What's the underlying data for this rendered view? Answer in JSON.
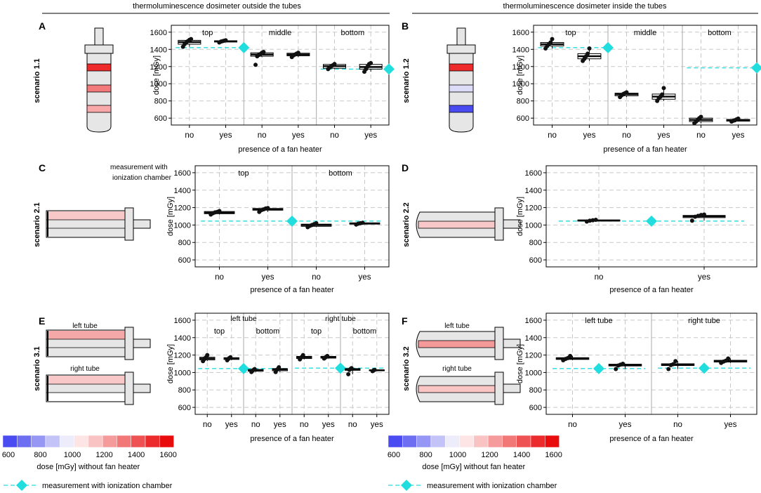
{
  "header": {
    "left": "thermoluminescence dosimeter outside the tubes",
    "right": "thermoluminescence dosimeter inside the tubes"
  },
  "annotation_C": "measurement with\nionization chamber",
  "colorbar": {
    "title": "dose [mGy] without fan heater",
    "ticks": [
      "600",
      "800",
      "1000",
      "1200",
      "1400",
      "1600"
    ],
    "colors": [
      "#4b4bf2",
      "#6e6ef3",
      "#9696f5",
      "#c3c3f8",
      "#ececfb",
      "#fde5e5",
      "#fac3c3",
      "#f69b9b",
      "#f27777",
      "#ef5252",
      "#ec2c2c",
      "#e90c0c"
    ]
  },
  "legend": {
    "label": "measurement with ionization chamber",
    "color": "#22dddd"
  },
  "colors": {
    "dashed": "#22dddd",
    "diamond": "#22dddd",
    "grid": "#c8c8c8"
  },
  "chart_data": [
    {
      "id": "A",
      "type": "boxplot",
      "scenario": "scenario 1.1",
      "ylabel": "dose [mGy]",
      "xlabel": "presence of a fan heater",
      "ylim": [
        520,
        1680
      ],
      "yticks": [
        600,
        800,
        1000,
        1200,
        1400,
        1600
      ],
      "categories": [
        "no",
        "yes",
        "no",
        "yes",
        "no",
        "yes"
      ],
      "groups": [
        {
          "label": "top",
          "span": [
            0,
            1
          ]
        },
        {
          "label": "middle",
          "span": [
            2,
            3
          ]
        },
        {
          "label": "bottom",
          "span": [
            4,
            5
          ]
        }
      ],
      "subgroups": [],
      "boxes": [
        {
          "q1": 1460,
          "med": 1485,
          "q3": 1505,
          "wlo": 1430,
          "whi": 1520,
          "pts": [
            1430,
            1460,
            1480,
            1495,
            1510,
            1520
          ]
        },
        {
          "q1": 1485,
          "med": 1495,
          "q3": 1500,
          "wlo": 1480,
          "whi": 1505,
          "pts": [
            1480,
            1490,
            1495,
            1500,
            1505
          ]
        },
        {
          "q1": 1320,
          "med": 1340,
          "q3": 1360,
          "wlo": 1310,
          "whi": 1370,
          "pts": [
            1220,
            1320,
            1335,
            1345,
            1360,
            1370
          ]
        },
        {
          "q1": 1325,
          "med": 1340,
          "q3": 1355,
          "wlo": 1310,
          "whi": 1365,
          "pts": [
            1310,
            1330,
            1340,
            1350,
            1360
          ]
        },
        {
          "q1": 1180,
          "med": 1205,
          "q3": 1225,
          "wlo": 1170,
          "whi": 1235,
          "pts": [
            1170,
            1190,
            1205,
            1215,
            1230
          ]
        },
        {
          "q1": 1170,
          "med": 1195,
          "q3": 1225,
          "wlo": 1140,
          "whi": 1240,
          "pts": [
            1140,
            1170,
            1200,
            1230,
            1240
          ]
        }
      ],
      "chamber": [
        {
          "x": 2,
          "y": 1420,
          "span": [
            0,
            1
          ]
        },
        {
          "x": 6,
          "y": 1170,
          "span": [
            4,
            5
          ]
        }
      ]
    },
    {
      "id": "B",
      "type": "boxplot",
      "scenario": "scenario 1.2",
      "ylabel": "dose [mGy]",
      "xlabel": "presence of a fan heater",
      "ylim": [
        520,
        1680
      ],
      "yticks": [
        600,
        800,
        1000,
        1200,
        1400,
        1600
      ],
      "categories": [
        "no",
        "yes",
        "no",
        "yes",
        "no",
        "yes"
      ],
      "groups": [
        {
          "label": "top",
          "span": [
            0,
            1
          ]
        },
        {
          "label": "middle",
          "span": [
            2,
            3
          ]
        },
        {
          "label": "bottom",
          "span": [
            4,
            5
          ]
        }
      ],
      "subgroups": [],
      "boxes": [
        {
          "q1": 1440,
          "med": 1460,
          "q3": 1480,
          "wlo": 1410,
          "whi": 1520,
          "pts": [
            1410,
            1440,
            1460,
            1480,
            1520
          ]
        },
        {
          "q1": 1290,
          "med": 1320,
          "q3": 1350,
          "wlo": 1265,
          "whi": 1410,
          "pts": [
            1265,
            1290,
            1320,
            1350,
            1410
          ]
        },
        {
          "q1": 860,
          "med": 878,
          "q3": 890,
          "wlo": 845,
          "whi": 900,
          "pts": [
            845,
            865,
            880,
            890,
            900
          ]
        },
        {
          "q1": 820,
          "med": 850,
          "q3": 880,
          "wlo": 800,
          "whi": 950,
          "pts": [
            800,
            830,
            850,
            875,
            950
          ]
        },
        {
          "q1": 560,
          "med": 580,
          "q3": 600,
          "wlo": 540,
          "whi": 615,
          "pts": [
            540,
            560,
            580,
            600,
            615
          ]
        },
        {
          "q1": 565,
          "med": 575,
          "q3": 585,
          "wlo": 560,
          "whi": 595,
          "pts": [
            560,
            570,
            575,
            585,
            595
          ]
        }
      ],
      "chamber": [
        {
          "x": 2,
          "y": 1420,
          "span": [
            0,
            1
          ]
        },
        {
          "x": 6,
          "y": 1185,
          "span": [
            4,
            5
          ]
        }
      ]
    },
    {
      "id": "C",
      "type": "boxplot",
      "scenario": "scenario 2.1",
      "ylabel": "dose [mGy]",
      "xlabel": "presence of a fan heater",
      "ylim": [
        520,
        1680
      ],
      "yticks": [
        600,
        800,
        1000,
        1200,
        1400,
        1600
      ],
      "categories": [
        "no",
        "yes",
        "no",
        "yes"
      ],
      "groups": [
        {
          "label": "top",
          "span": [
            0,
            1
          ]
        },
        {
          "label": "bottom",
          "span": [
            2,
            3
          ]
        }
      ],
      "subgroups": [],
      "boxes": [
        {
          "q1": 1130,
          "med": 1142,
          "q3": 1155,
          "wlo": 1120,
          "whi": 1160,
          "pts": [
            1120,
            1135,
            1145,
            1150,
            1160
          ]
        },
        {
          "q1": 1170,
          "med": 1180,
          "q3": 1190,
          "wlo": 1150,
          "whi": 1195,
          "pts": [
            1150,
            1170,
            1180,
            1190,
            1195
          ]
        },
        {
          "q1": 985,
          "med": 1000,
          "q3": 1010,
          "wlo": 975,
          "whi": 1020,
          "pts": [
            975,
            990,
            1000,
            1010,
            1020
          ]
        },
        {
          "q1": 1010,
          "med": 1018,
          "q3": 1025,
          "wlo": 1005,
          "whi": 1030,
          "pts": [
            1005,
            1015,
            1020,
            1025
          ]
        }
      ],
      "chamber": [
        {
          "x": 2,
          "y": 1045,
          "span": [
            0,
            3
          ]
        }
      ]
    },
    {
      "id": "D",
      "type": "boxplot",
      "scenario": "scenario 2.2",
      "ylabel": "dose [mGy]",
      "xlabel": "presence of a fan heater",
      "ylim": [
        520,
        1680
      ],
      "yticks": [
        600,
        800,
        1000,
        1200,
        1400,
        1600
      ],
      "categories": [
        "no",
        "yes"
      ],
      "groups": [],
      "subgroups": [],
      "boxes": [
        {
          "q1": 1045,
          "med": 1052,
          "q3": 1058,
          "wlo": 1040,
          "whi": 1062,
          "pts": [
            1040,
            1050,
            1055,
            1060
          ]
        },
        {
          "q1": 1085,
          "med": 1100,
          "q3": 1110,
          "wlo": 1050,
          "whi": 1120,
          "pts": [
            1050,
            1095,
            1105,
            1115,
            1120
          ]
        }
      ],
      "chamber": [
        {
          "x": 1,
          "y": 1045,
          "span": [
            0,
            1
          ]
        }
      ]
    },
    {
      "id": "E",
      "type": "boxplot",
      "scenario": "scenario 3.1",
      "ylabel": "dose [mGy]",
      "xlabel": "presence of a fan heater",
      "ylim": [
        520,
        1680
      ],
      "yticks": [
        600,
        800,
        1000,
        1200,
        1400,
        1600
      ],
      "categories": [
        "no",
        "yes",
        "no",
        "yes",
        "no",
        "yes",
        "no",
        "yes"
      ],
      "groups": [
        {
          "label": "left tube",
          "span": [
            0,
            3
          ]
        },
        {
          "label": "right tube",
          "span": [
            4,
            7
          ]
        }
      ],
      "subgroups": [
        {
          "label": "top",
          "span": [
            0,
            1
          ]
        },
        {
          "label": "bottom",
          "span": [
            2,
            3
          ]
        },
        {
          "label": "top",
          "span": [
            4,
            5
          ]
        },
        {
          "label": "bottom",
          "span": [
            6,
            7
          ]
        }
      ],
      "boxes": [
        {
          "q1": 1145,
          "med": 1160,
          "q3": 1175,
          "wlo": 1130,
          "whi": 1200,
          "pts": [
            1130,
            1150,
            1165,
            1175,
            1200
          ]
        },
        {
          "q1": 1150,
          "med": 1160,
          "q3": 1170,
          "wlo": 1140,
          "whi": 1175,
          "pts": [
            1140,
            1155,
            1165,
            1175
          ]
        },
        {
          "q1": 1015,
          "med": 1025,
          "q3": 1035,
          "wlo": 1005,
          "whi": 1040,
          "pts": [
            1005,
            1020,
            1030,
            1040
          ]
        },
        {
          "q1": 1020,
          "med": 1035,
          "q3": 1045,
          "wlo": 1005,
          "whi": 1060,
          "pts": [
            1005,
            1030,
            1040,
            1060
          ]
        },
        {
          "q1": 1160,
          "med": 1175,
          "q3": 1185,
          "wlo": 1150,
          "whi": 1200,
          "pts": [
            1150,
            1170,
            1180,
            1200
          ]
        },
        {
          "q1": 1165,
          "med": 1175,
          "q3": 1185,
          "wlo": 1160,
          "whi": 1190,
          "pts": [
            1160,
            1170,
            1180,
            1190
          ]
        },
        {
          "q1": 1025,
          "med": 1035,
          "q3": 1045,
          "wlo": 980,
          "whi": 1050,
          "pts": [
            980,
            1030,
            1040,
            1050
          ]
        },
        {
          "q1": 1020,
          "med": 1025,
          "q3": 1030,
          "wlo": 1015,
          "whi": 1035,
          "pts": [
            1015,
            1025,
            1030
          ]
        }
      ],
      "chamber": [
        {
          "x": 2,
          "y": 1045,
          "span": [
            0,
            3
          ]
        },
        {
          "x": 6,
          "y": 1050,
          "span": [
            4,
            7
          ]
        }
      ]
    },
    {
      "id": "F",
      "type": "boxplot",
      "scenario": "scenario 3.2",
      "ylabel": "dose [mGy]",
      "xlabel": "presence of a fan heater",
      "ylim": [
        520,
        1680
      ],
      "yticks": [
        600,
        800,
        1000,
        1200,
        1400,
        1600
      ],
      "categories": [
        "no",
        "yes",
        "no",
        "yes"
      ],
      "groups": [
        {
          "label": "left tube",
          "span": [
            0,
            1
          ]
        },
        {
          "label": "right tube",
          "span": [
            2,
            3
          ]
        }
      ],
      "subgroups": [],
      "boxes": [
        {
          "q1": 1150,
          "med": 1160,
          "q3": 1170,
          "wlo": 1140,
          "whi": 1190,
          "pts": [
            1140,
            1155,
            1165,
            1190
          ]
        },
        {
          "q1": 1075,
          "med": 1085,
          "q3": 1095,
          "wlo": 1040,
          "whi": 1100,
          "pts": [
            1040,
            1080,
            1090,
            1100
          ]
        },
        {
          "q1": 1080,
          "med": 1090,
          "q3": 1100,
          "wlo": 1040,
          "whi": 1130,
          "pts": [
            1040,
            1085,
            1095,
            1130
          ]
        },
        {
          "q1": 1120,
          "med": 1130,
          "q3": 1140,
          "wlo": 1110,
          "whi": 1160,
          "pts": [
            1110,
            1125,
            1135,
            1160
          ]
        }
      ],
      "chamber": [
        {
          "x": 1,
          "y": 1045,
          "span": [
            0,
            1
          ]
        },
        {
          "x": 3,
          "y": 1050,
          "span": [
            2,
            3
          ]
        }
      ]
    }
  ]
}
